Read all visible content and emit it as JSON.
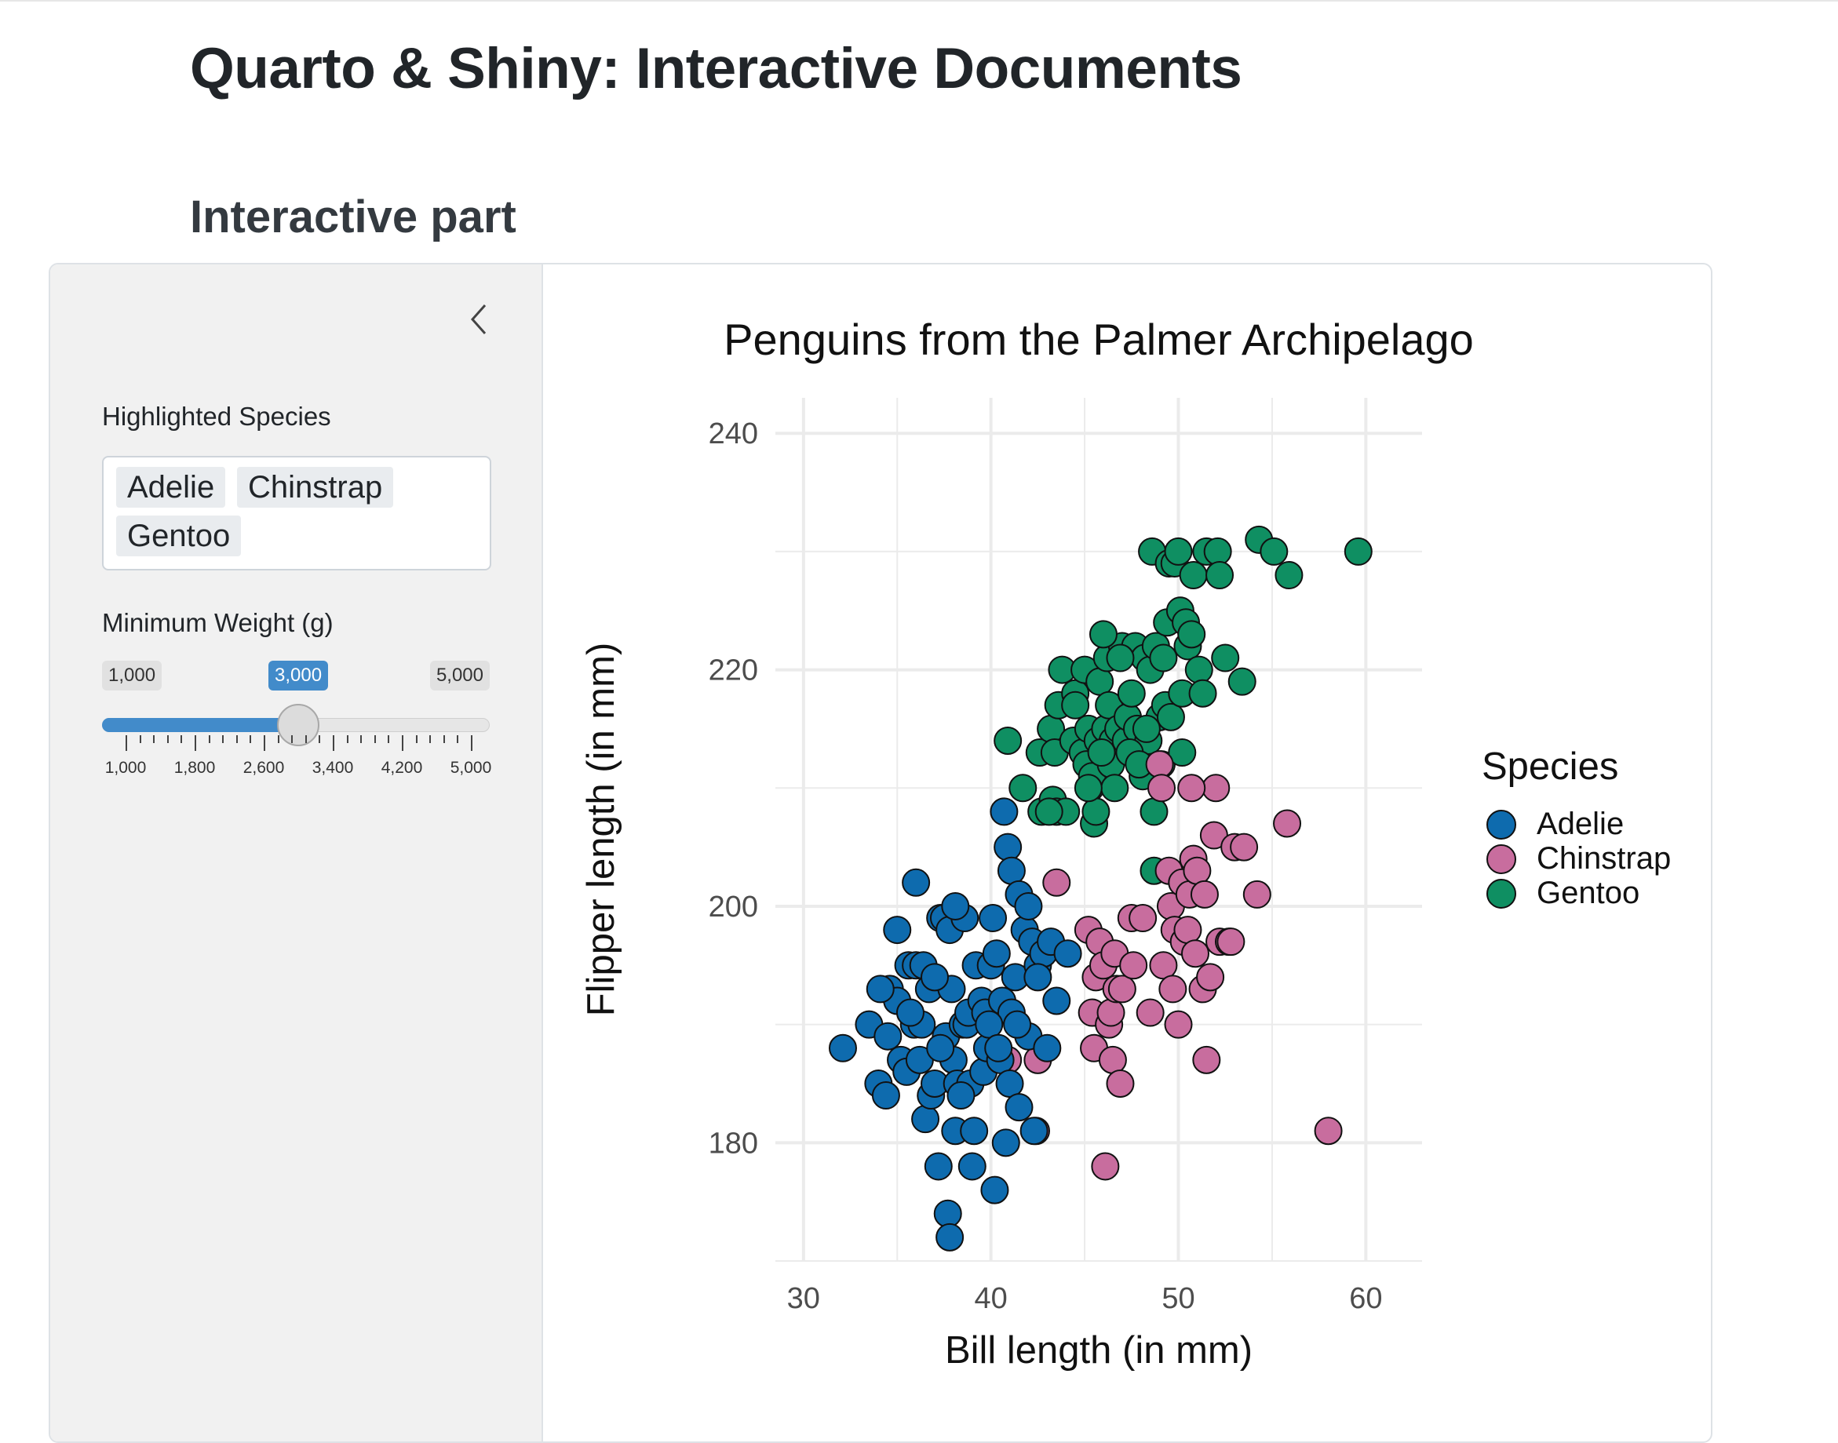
{
  "page": {
    "title": "Quarto & Shiny: Interactive Documents",
    "section": "Interactive part"
  },
  "sidebar": {
    "collapse_icon": "chevron-left-icon",
    "species_label": "Highlighted Species",
    "species_selected": [
      "Adelie",
      "Chinstrap",
      "Gentoo"
    ],
    "weight_label": "Minimum Weight (g)",
    "weight_slider": {
      "min": 1000,
      "max": 5000,
      "value": 3000,
      "min_label": "1,000",
      "max_label": "5,000",
      "value_label": "3,000",
      "tick_labels": [
        "1,000",
        "1,800",
        "2,600",
        "3,400",
        "4,200",
        "5,000"
      ]
    }
  },
  "colors": {
    "Adelie": "#0E6BAE",
    "Chinstrap": "#C86D9E",
    "Gentoo": "#0F8F62",
    "slider_accent": "#428bca",
    "sidebar_bg": "#f1f1f1"
  },
  "chart_data": {
    "type": "scatter",
    "title": "Penguins from the Palmer Archipelago",
    "xlabel": "Bill length (in mm)",
    "ylabel": "Flipper length (in mm)",
    "xlim": [
      28.5,
      63
    ],
    "ylim": [
      170,
      243
    ],
    "x_ticks": [
      30,
      40,
      50,
      60
    ],
    "y_ticks": [
      180,
      200,
      220,
      240
    ],
    "grid": true,
    "legend": {
      "title": "Species",
      "position": "right",
      "entries": [
        "Adelie",
        "Chinstrap",
        "Gentoo"
      ]
    },
    "series": [
      {
        "name": "Adelie",
        "points": [
          [
            32.1,
            188
          ],
          [
            33.5,
            190
          ],
          [
            34.0,
            185
          ],
          [
            34.4,
            184
          ],
          [
            34.5,
            189
          ],
          [
            34.6,
            193
          ],
          [
            35.0,
            192
          ],
          [
            35.2,
            187
          ],
          [
            35.5,
            186
          ],
          [
            35.6,
            195
          ],
          [
            35.9,
            190
          ],
          [
            36.0,
            195
          ],
          [
            36.2,
            187
          ],
          [
            36.4,
            195
          ],
          [
            36.5,
            182
          ],
          [
            36.7,
            193
          ],
          [
            36.8,
            184
          ],
          [
            37.0,
            185
          ],
          [
            37.2,
            178
          ],
          [
            37.3,
            199
          ],
          [
            37.5,
            199
          ],
          [
            37.6,
            189
          ],
          [
            37.7,
            174
          ],
          [
            37.8,
            172
          ],
          [
            37.8,
            198
          ],
          [
            37.9,
            193
          ],
          [
            38.0,
            187
          ],
          [
            38.1,
            181
          ],
          [
            38.2,
            185
          ],
          [
            38.5,
            190
          ],
          [
            38.6,
            199
          ],
          [
            38.7,
            190
          ],
          [
            38.8,
            191
          ],
          [
            38.9,
            185
          ],
          [
            39.0,
            178
          ],
          [
            39.2,
            195
          ],
          [
            39.5,
            192
          ],
          [
            39.6,
            186
          ],
          [
            39.7,
            191
          ],
          [
            39.8,
            188
          ],
          [
            40.0,
            195
          ],
          [
            40.2,
            176
          ],
          [
            40.3,
            196
          ],
          [
            40.5,
            187
          ],
          [
            40.6,
            192
          ],
          [
            40.8,
            180
          ],
          [
            41.0,
            185
          ],
          [
            41.1,
            191
          ],
          [
            41.3,
            194
          ],
          [
            41.5,
            183
          ],
          [
            41.8,
            198
          ],
          [
            42.0,
            189
          ],
          [
            42.2,
            197
          ],
          [
            42.5,
            195
          ],
          [
            42.8,
            196
          ],
          [
            43.2,
            197
          ],
          [
            43.5,
            192
          ],
          [
            44.1,
            196
          ],
          [
            40.7,
            208
          ],
          [
            40.9,
            205
          ],
          [
            41.1,
            203
          ],
          [
            41.5,
            201
          ],
          [
            42.0,
            200
          ],
          [
            42.5,
            194
          ],
          [
            38.1,
            200
          ],
          [
            36.0,
            202
          ],
          [
            35.0,
            198
          ],
          [
            34.1,
            193
          ],
          [
            37.0,
            194
          ],
          [
            39.1,
            181
          ],
          [
            40.1,
            199
          ],
          [
            41.4,
            190
          ],
          [
            42.3,
            181
          ],
          [
            43.0,
            188
          ],
          [
            36.3,
            190
          ],
          [
            38.4,
            184
          ],
          [
            37.3,
            188
          ],
          [
            39.9,
            190
          ],
          [
            40.4,
            188
          ],
          [
            35.7,
            191
          ]
        ]
      },
      {
        "name": "Chinstrap",
        "points": [
          [
            40.9,
            187
          ],
          [
            42.4,
            181
          ],
          [
            42.5,
            187
          ],
          [
            43.5,
            202
          ],
          [
            45.2,
            198
          ],
          [
            45.4,
            191
          ],
          [
            45.5,
            188
          ],
          [
            45.6,
            194
          ],
          [
            45.8,
            197
          ],
          [
            46.0,
            195
          ],
          [
            46.1,
            178
          ],
          [
            46.3,
            190
          ],
          [
            46.4,
            191
          ],
          [
            46.5,
            187
          ],
          [
            46.6,
            196
          ],
          [
            46.7,
            193
          ],
          [
            46.9,
            185
          ],
          [
            47.0,
            193
          ],
          [
            47.5,
            199
          ],
          [
            47.6,
            195
          ],
          [
            48.1,
            199
          ],
          [
            48.5,
            191
          ],
          [
            49.0,
            212
          ],
          [
            49.2,
            195
          ],
          [
            49.5,
            203
          ],
          [
            49.6,
            200
          ],
          [
            49.7,
            193
          ],
          [
            49.8,
            198
          ],
          [
            50.0,
            190
          ],
          [
            50.2,
            202
          ],
          [
            50.3,
            197
          ],
          [
            50.5,
            198
          ],
          [
            50.6,
            201
          ],
          [
            50.8,
            204
          ],
          [
            50.9,
            196
          ],
          [
            51.0,
            203
          ],
          [
            51.3,
            193
          ],
          [
            51.4,
            201
          ],
          [
            51.5,
            187
          ],
          [
            51.7,
            194
          ],
          [
            51.9,
            206
          ],
          [
            52.0,
            210
          ],
          [
            52.2,
            197
          ],
          [
            52.7,
            197
          ],
          [
            53.0,
            205
          ],
          [
            53.5,
            205
          ],
          [
            54.2,
            201
          ],
          [
            55.8,
            207
          ],
          [
            58.0,
            181
          ],
          [
            49.1,
            210
          ],
          [
            52.8,
            197
          ],
          [
            50.7,
            210
          ]
        ]
      },
      {
        "name": "Gentoo",
        "points": [
          [
            40.9,
            214
          ],
          [
            41.7,
            210
          ],
          [
            42.6,
            213
          ],
          [
            42.7,
            208
          ],
          [
            43.2,
            215
          ],
          [
            43.3,
            209
          ],
          [
            43.4,
            213
          ],
          [
            43.5,
            208
          ],
          [
            43.6,
            217
          ],
          [
            43.8,
            220
          ],
          [
            44.0,
            208
          ],
          [
            44.4,
            214
          ],
          [
            44.5,
            218
          ],
          [
            44.9,
            213
          ],
          [
            45.0,
            220
          ],
          [
            45.1,
            212
          ],
          [
            45.2,
            215
          ],
          [
            45.3,
            210
          ],
          [
            45.4,
            211
          ],
          [
            45.5,
            207
          ],
          [
            45.6,
            208
          ],
          [
            45.7,
            214
          ],
          [
            45.8,
            219
          ],
          [
            46.1,
            215
          ],
          [
            46.2,
            221
          ],
          [
            46.3,
            217
          ],
          [
            46.4,
            212
          ],
          [
            46.5,
            214
          ],
          [
            46.6,
            210
          ],
          [
            46.8,
            215
          ],
          [
            47.0,
            222
          ],
          [
            47.2,
            214
          ],
          [
            47.3,
            216
          ],
          [
            47.5,
            218
          ],
          [
            47.7,
            222
          ],
          [
            47.8,
            215
          ],
          [
            48.1,
            211
          ],
          [
            48.2,
            221
          ],
          [
            48.4,
            214
          ],
          [
            48.5,
            220
          ],
          [
            48.6,
            230
          ],
          [
            48.7,
            208
          ],
          [
            48.8,
            222
          ],
          [
            49.0,
            216
          ],
          [
            49.1,
            212
          ],
          [
            49.2,
            221
          ],
          [
            49.3,
            217
          ],
          [
            49.4,
            224
          ],
          [
            49.5,
            229
          ],
          [
            49.6,
            216
          ],
          [
            49.8,
            229
          ],
          [
            50.0,
            230
          ],
          [
            50.1,
            225
          ],
          [
            50.2,
            218
          ],
          [
            50.4,
            224
          ],
          [
            50.5,
            222
          ],
          [
            50.7,
            223
          ],
          [
            50.8,
            228
          ],
          [
            51.1,
            220
          ],
          [
            51.3,
            218
          ],
          [
            51.5,
            230
          ],
          [
            52.1,
            230
          ],
          [
            52.2,
            228
          ],
          [
            52.5,
            221
          ],
          [
            53.4,
            219
          ],
          [
            54.3,
            231
          ],
          [
            55.1,
            230
          ],
          [
            55.9,
            228
          ],
          [
            59.6,
            230
          ],
          [
            45.2,
            210
          ],
          [
            44.5,
            217
          ],
          [
            47.4,
            213
          ],
          [
            46.9,
            221
          ],
          [
            48.3,
            215
          ],
          [
            43.1,
            208
          ],
          [
            46.0,
            223
          ],
          [
            48.7,
            203
          ],
          [
            47.9,
            212
          ],
          [
            45.9,
            213
          ],
          [
            50.2,
            213
          ]
        ]
      }
    ]
  }
}
